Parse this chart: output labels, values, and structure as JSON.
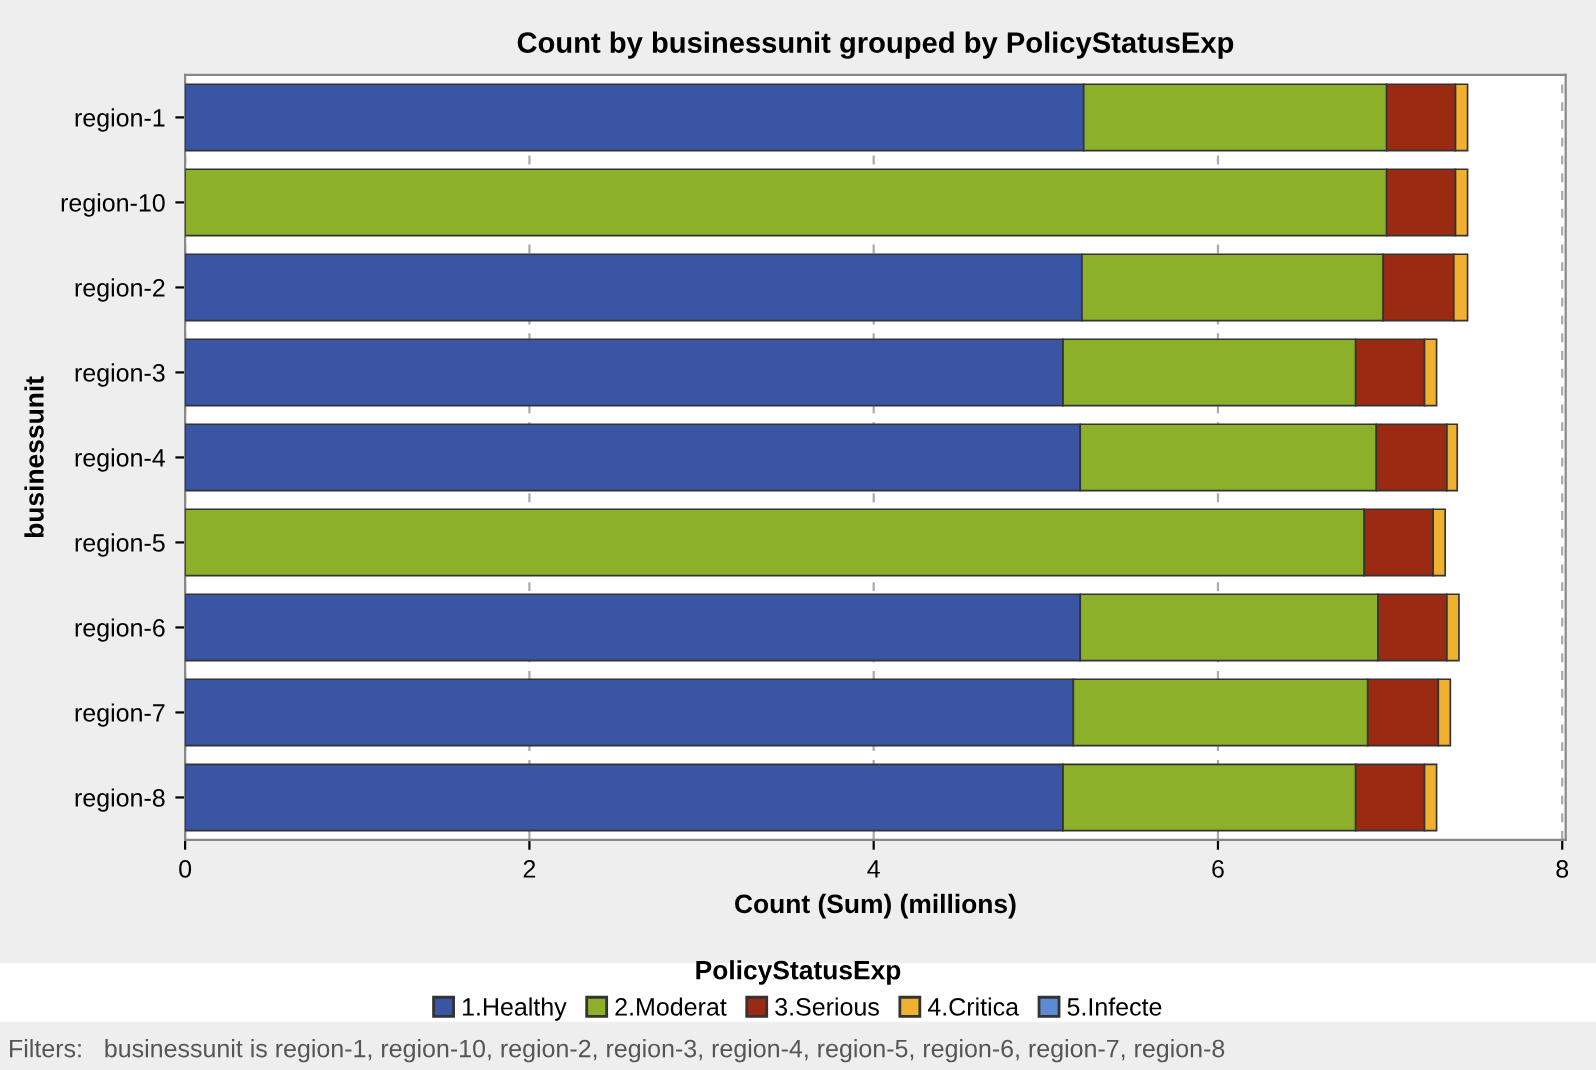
{
  "chart_data": {
    "type": "bar",
    "orientation": "horizontal",
    "stacked": true,
    "title": "Count by businessunit grouped by PolicyStatusExp",
    "xlabel": "Count (Sum) (millions)",
    "ylabel": "businessunit",
    "legend_title": "PolicyStatusExp",
    "categories": [
      "region-1",
      "region-10",
      "region-2",
      "region-3",
      "region-4",
      "region-5",
      "region-6",
      "region-7",
      "region-8"
    ],
    "series": [
      {
        "name": "1.Healthy",
        "color": "#3a55a4",
        "values": [
          5.22,
          0,
          5.21,
          5.1,
          5.2,
          0,
          5.2,
          5.16,
          5.1
        ]
      },
      {
        "name": "2.Moderat",
        "color": "#8cb02a",
        "values": [
          1.76,
          6.98,
          1.75,
          1.7,
          1.72,
          6.85,
          1.73,
          1.71,
          1.7
        ]
      },
      {
        "name": "3.Serious",
        "color": "#9a2a12",
        "values": [
          0.4,
          0.4,
          0.41,
          0.4,
          0.41,
          0.4,
          0.4,
          0.41,
          0.4
        ]
      },
      {
        "name": "4.Critica",
        "color": "#f0b030",
        "values": [
          0.07,
          0.07,
          0.08,
          0.07,
          0.06,
          0.07,
          0.07,
          0.07,
          0.07
        ]
      },
      {
        "name": "5.Infecte",
        "color": "#5b8bd0",
        "values": [
          null,
          null,
          null,
          null,
          null,
          null,
          null,
          null,
          null
        ]
      }
    ],
    "xlim": [
      0,
      8.02
    ],
    "xticks": [
      0,
      2,
      4,
      6,
      8
    ],
    "grid": "x",
    "legend": "bottom",
    "annotations": [
      "Filters:   businessunit is region-1, region-10, region-2, region-3, region-4, region-5, region-6, region-7, region-8"
    ]
  }
}
